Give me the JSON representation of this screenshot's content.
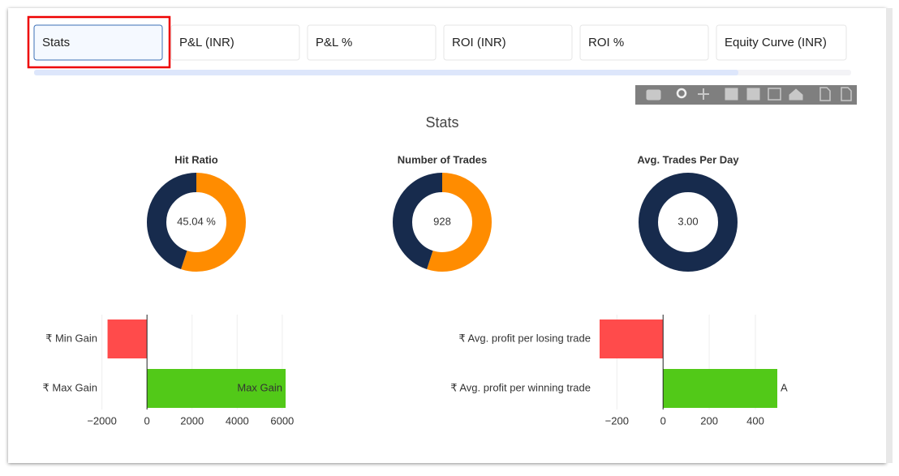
{
  "tabs": [
    "Stats",
    "P&L (INR)",
    "P&L %",
    "ROI (INR)",
    "ROI %",
    "Equity Curve (INR)"
  ],
  "selected_tab": 0,
  "title": "Stats",
  "donuts": [
    {
      "type": "pie",
      "title": "Hit Ratio",
      "center_label": "45.04 %",
      "values": [
        54.96,
        45.04
      ],
      "colors": [
        "#ff8c00",
        "#172b4d"
      ]
    },
    {
      "type": "pie",
      "title": "Number of Trades",
      "center_label": "928",
      "values": [
        510,
        418
      ],
      "colors": [
        "#ff8c00",
        "#172b4d"
      ]
    },
    {
      "type": "pie",
      "title": "Avg. Trades Per Day",
      "center_label": "3.00",
      "values": [
        3
      ],
      "colors": [
        "#172b4d"
      ]
    }
  ],
  "bar_charts": [
    {
      "type": "bar",
      "orientation": "horizontal",
      "categories": [
        "₹ Min Gain",
        "₹ Max Gain"
      ],
      "values": [
        -1750,
        6150
      ],
      "bar_texts": [
        null,
        "Max Gain"
      ],
      "colors": [
        "#ff4b4b",
        "#52c918"
      ],
      "xlim": [
        -1950,
        6150
      ],
      "xticks": [
        {
          "value": -2000,
          "label": "−2000"
        },
        0,
        2000,
        4000,
        6000
      ]
    },
    {
      "type": "bar",
      "orientation": "horizontal",
      "categories": [
        "₹ Avg. profit per losing trade",
        "₹ Avg. profit per winning trade"
      ],
      "values": [
        -275,
        495
      ],
      "bar_texts": [
        null,
        "A"
      ],
      "colors": [
        "#ff4b4b",
        "#52c918"
      ],
      "xlim": [
        -275,
        495
      ],
      "xticks": [
        {
          "value": -200,
          "label": "−200"
        },
        0,
        200,
        400
      ]
    }
  ]
}
